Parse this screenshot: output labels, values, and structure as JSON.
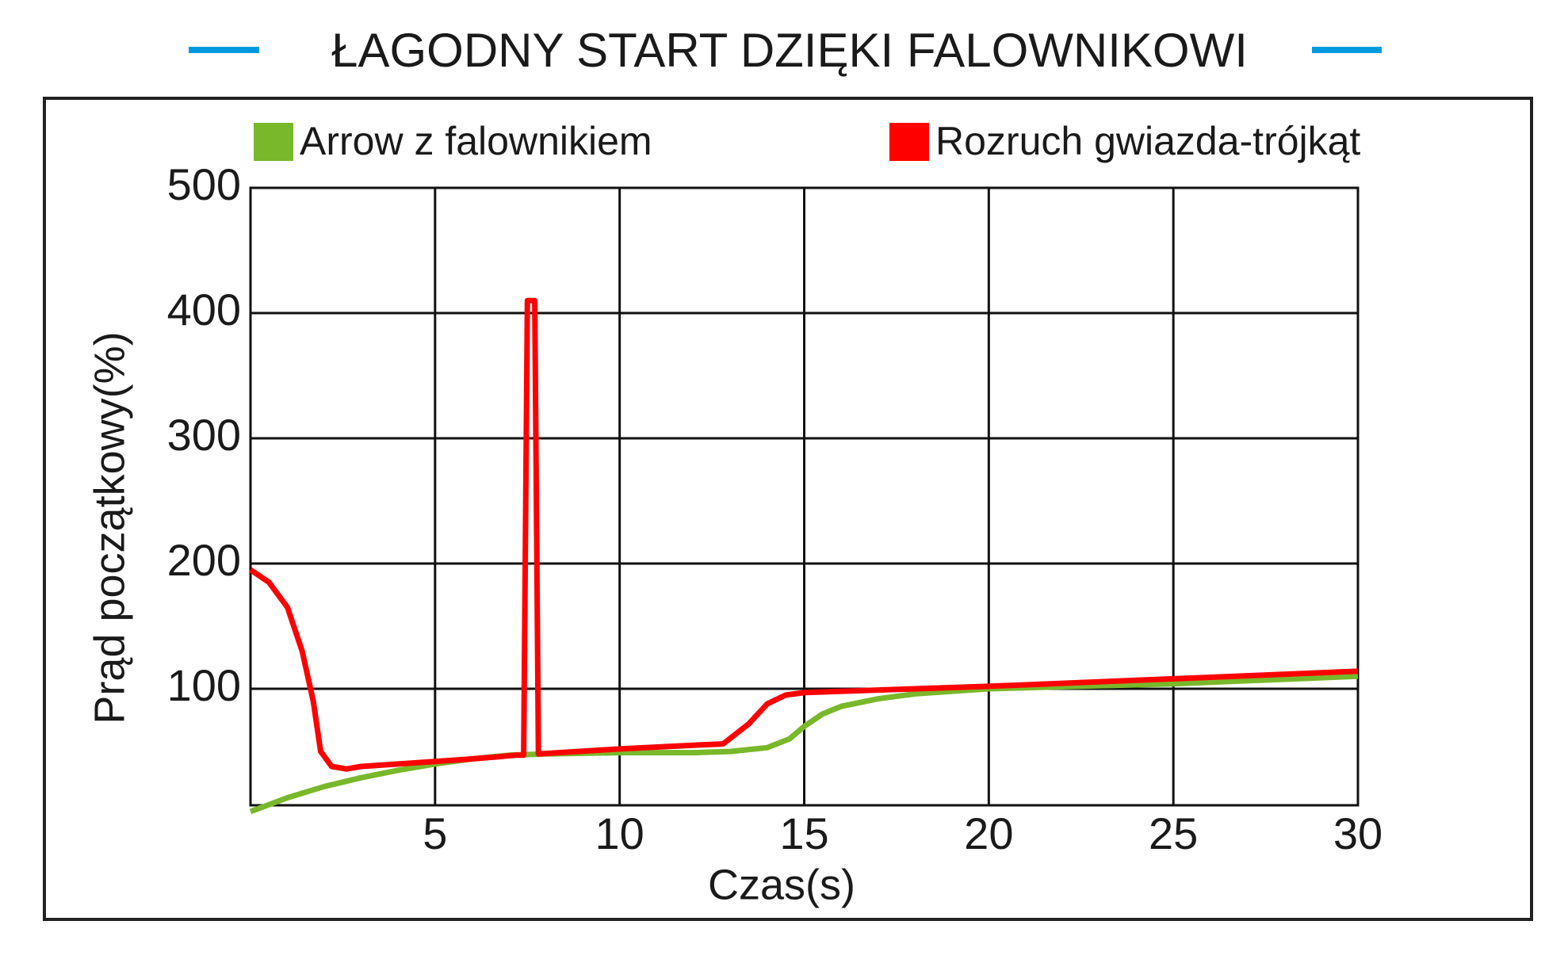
{
  "chart_data": {
    "type": "line",
    "title": "ŁAGODNY START DZIĘKI FALOWNIKOWI",
    "x_label": "Czas(s)",
    "y_label": "Prąd początkowy(%)",
    "xlim": [
      0,
      30
    ],
    "xticks": [
      5,
      10,
      15,
      20,
      25,
      30
    ],
    "ylim": [
      7,
      500
    ],
    "yticks": [
      100,
      200,
      300,
      400,
      500
    ],
    "grid": true,
    "legend": "top",
    "series": [
      {
        "name": "Arrow z falownikiem",
        "color": "#78b82a",
        "x": [
          0,
          1,
          2,
          3,
          4,
          5,
          6,
          7,
          8,
          10,
          12,
          13,
          14,
          14.6,
          15,
          15.5,
          16,
          17,
          18,
          20,
          25,
          30
        ],
        "values": [
          2,
          13,
          22,
          29,
          35,
          40,
          44,
          47,
          48,
          49,
          49,
          50,
          53,
          60,
          70,
          80,
          86,
          92,
          96,
          100,
          104,
          110
        ]
      },
      {
        "name": "Rozruch gwiazda-trójkąt",
        "color": "#ff0000",
        "x": [
          0,
          0.5,
          1,
          1.4,
          1.7,
          1.9,
          2.2,
          2.6,
          3,
          4,
          5,
          6,
          7.2,
          7.4,
          7.5,
          7.7,
          7.8,
          10,
          12,
          12.8,
          13.5,
          14,
          14.5,
          15,
          20,
          25,
          30
        ],
        "values": [
          195,
          185,
          165,
          130,
          90,
          50,
          38,
          36,
          38,
          40,
          42,
          44,
          47,
          47,
          410,
          410,
          48,
          52,
          55,
          56,
          72,
          88,
          95,
          97,
          102,
          108,
          114
        ]
      }
    ]
  }
}
